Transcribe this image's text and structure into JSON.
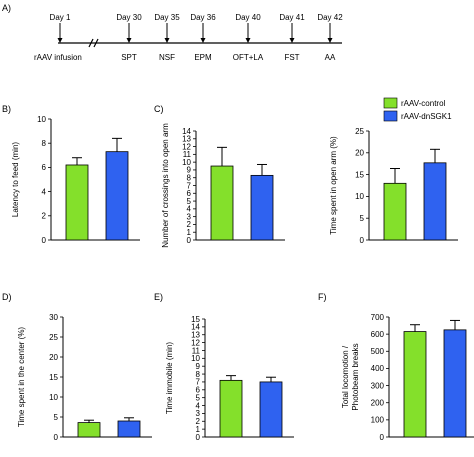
{
  "colors": {
    "control": "#84e02b",
    "dnsgk1": "#2f62f0",
    "axis": "#000000"
  },
  "timeline": {
    "panel_label": "A)",
    "start_label": "rAAV infusion",
    "events": [
      {
        "day": "Day 1",
        "test": ""
      },
      {
        "day": "Day 30",
        "test": "SPT"
      },
      {
        "day": "Day 35",
        "test": "NSF"
      },
      {
        "day": "Day 36",
        "test": "EPM"
      },
      {
        "day": "Day 40",
        "test": "OFT+LA"
      },
      {
        "day": "Day 41",
        "test": "FST"
      },
      {
        "day": "Day 42",
        "test": "AA"
      }
    ]
  },
  "legend": [
    {
      "label": "rAAV-control",
      "color": "#84e02b"
    },
    {
      "label": "rAAV-dnSGK1",
      "color": "#2f62f0"
    }
  ],
  "chart_data": [
    {
      "id": "B",
      "type": "bar",
      "panel_label": "B)",
      "ylabel": "Latency to feed (min)",
      "ylim": [
        0,
        10
      ],
      "ticks": [
        0,
        2,
        4,
        6,
        8,
        10
      ],
      "series": [
        {
          "name": "rAAV-control",
          "values": [
            6.2
          ],
          "error": [
            0.6
          ]
        },
        {
          "name": "rAAV-dnSGK1",
          "values": [
            7.3
          ],
          "error": [
            1.1
          ]
        }
      ]
    },
    {
      "id": "C1",
      "type": "bar",
      "panel_label": "C)",
      "ylabel": "Number of crossings into open arm",
      "ylim": [
        0,
        14
      ],
      "ticks": [
        0,
        1,
        2,
        3,
        4,
        5,
        6,
        7,
        8,
        9,
        10,
        11,
        12,
        13,
        14
      ],
      "series": [
        {
          "name": "rAAV-control",
          "values": [
            9.5
          ],
          "error": [
            2.4
          ]
        },
        {
          "name": "rAAV-dnSGK1",
          "values": [
            8.3
          ],
          "error": [
            1.4
          ]
        }
      ]
    },
    {
      "id": "C2",
      "type": "bar",
      "panel_label": "",
      "ylabel": "Time spent in open arm (%)",
      "ylim": [
        0,
        25
      ],
      "ticks": [
        0,
        5,
        10,
        15,
        20,
        25
      ],
      "series": [
        {
          "name": "rAAV-control",
          "values": [
            13.0
          ],
          "error": [
            3.4
          ]
        },
        {
          "name": "rAAV-dnSGK1",
          "values": [
            17.7
          ],
          "error": [
            3.1
          ]
        }
      ]
    },
    {
      "id": "D",
      "type": "bar",
      "panel_label": "D)",
      "ylabel": "Time spent in the center (%)",
      "ylim": [
        0,
        30
      ],
      "ticks": [
        0,
        5,
        10,
        15,
        20,
        25,
        30
      ],
      "series": [
        {
          "name": "rAAV-control",
          "values": [
            3.6
          ],
          "error": [
            0.6
          ]
        },
        {
          "name": "rAAV-dnSGK1",
          "values": [
            4.0
          ],
          "error": [
            0.8
          ]
        }
      ]
    },
    {
      "id": "E",
      "type": "bar",
      "panel_label": "E)",
      "ylabel": "Time immobile (min)",
      "ylim": [
        0,
        15
      ],
      "ticks": [
        0,
        1,
        2,
        3,
        4,
        5,
        6,
        7,
        8,
        9,
        10,
        11,
        12,
        13,
        14,
        15
      ],
      "series": [
        {
          "name": "rAAV-control",
          "values": [
            7.2
          ],
          "error": [
            0.6
          ]
        },
        {
          "name": "rAAV-dnSGK1",
          "values": [
            7.0
          ],
          "error": [
            0.6
          ]
        }
      ]
    },
    {
      "id": "F",
      "type": "bar",
      "panel_label": "F)",
      "ylabel": "Total locomotion / Photobeam breaks",
      "ylim": [
        0,
        700
      ],
      "ticks": [
        0,
        100,
        200,
        300,
        400,
        500,
        600,
        700
      ],
      "series": [
        {
          "name": "rAAV-control",
          "values": [
            615
          ],
          "error": [
            40
          ]
        },
        {
          "name": "rAAV-dnSGK1",
          "values": [
            625
          ],
          "error": [
            55
          ]
        }
      ]
    }
  ]
}
